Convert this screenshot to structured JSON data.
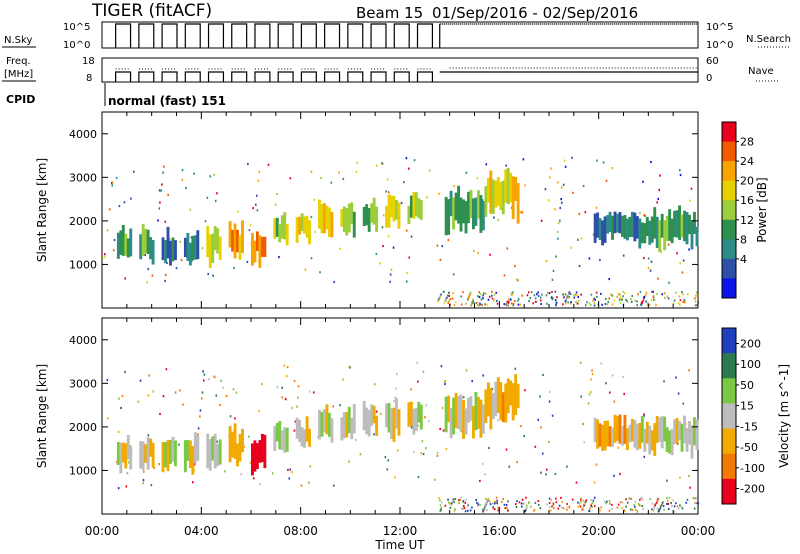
{
  "header": {
    "title": "TIGER (fitACF)",
    "beam": "Beam 15",
    "date_range": "01/Sep/2016 - 02/Sep/2016"
  },
  "status_panel": {
    "nsky_label": "N.Sky",
    "nsky_ticks": [
      "10^5",
      "10^0"
    ],
    "nsearch_label": "N.Search",
    "freq_label_1": "Freq.",
    "freq_label_2": "[MHz]",
    "freq_ticks": [
      "18",
      "8"
    ],
    "nave_ticks": [
      "60",
      "0"
    ],
    "nave_label": "Nave",
    "cpid_label": "CPID",
    "cpid_text": "normal (fast) 151"
  },
  "colorbars": {
    "power": {
      "label": "Power [dB]",
      "ticks": [
        "28",
        "24",
        "20",
        "16",
        "12",
        "8",
        "4"
      ],
      "colors": [
        "#e8001e",
        "#f25a00",
        "#f7a300",
        "#e6d200",
        "#9ccd3a",
        "#2e8f4e",
        "#2c8c86",
        "#2e4fa8",
        "#0a14e6"
      ]
    },
    "velocity": {
      "label": "Velocity [m s^-1]",
      "ticks": [
        "200",
        "100",
        "50",
        "15",
        "-15",
        "-50",
        "-100",
        "-200"
      ],
      "colors": [
        "#1f3fbf",
        "#2c7a50",
        "#7ac943",
        "#bdbdbd",
        "#f2a900",
        "#f27a00",
        "#e8001e"
      ]
    }
  },
  "chart_data": [
    {
      "type": "heatmap",
      "name": "Power",
      "ylabel": "Slant Range [km]",
      "xlabel": "",
      "ylim": [
        0,
        4500
      ],
      "yticks": [
        "4000",
        "3000",
        "2000",
        "1000"
      ],
      "xlim": [
        0,
        24
      ],
      "xticks": [
        "00:00",
        "04:00",
        "08:00",
        "12:00",
        "16:00",
        "20:00",
        "00:00"
      ],
      "blocks": [
        {
          "t0": 0.6,
          "t1": 1.2,
          "r0": 1050,
          "r1": 1800,
          "level": 3
        },
        {
          "t0": 1.5,
          "t1": 2.1,
          "r0": 1050,
          "r1": 1800,
          "level": 3
        },
        {
          "t0": 2.4,
          "t1": 3.0,
          "r0": 1000,
          "r1": 1750,
          "level": 2
        },
        {
          "t0": 3.3,
          "t1": 3.9,
          "r0": 1000,
          "r1": 1750,
          "level": 2
        },
        {
          "t0": 4.2,
          "t1": 4.8,
          "r0": 1050,
          "r1": 1850,
          "level": 4
        },
        {
          "t0": 5.1,
          "t1": 5.7,
          "r0": 1100,
          "r1": 1950,
          "level": 6
        },
        {
          "t0": 6.0,
          "t1": 6.6,
          "r0": 1000,
          "r1": 1800,
          "level": 7
        },
        {
          "t0": 6.9,
          "t1": 7.5,
          "r0": 1400,
          "r1": 2100,
          "level": 4
        },
        {
          "t0": 7.8,
          "t1": 8.4,
          "r0": 1500,
          "r1": 2200,
          "level": 5
        },
        {
          "t0": 8.7,
          "t1": 9.3,
          "r0": 1700,
          "r1": 2400,
          "level": 5
        },
        {
          "t0": 9.6,
          "t1": 10.2,
          "r0": 1700,
          "r1": 2400,
          "level": 4
        },
        {
          "t0": 10.5,
          "t1": 11.1,
          "r0": 1800,
          "r1": 2500,
          "level": 4
        },
        {
          "t0": 11.4,
          "t1": 12.0,
          "r0": 1800,
          "r1": 2600,
          "level": 5
        },
        {
          "t0": 12.3,
          "t1": 12.9,
          "r0": 1900,
          "r1": 2600,
          "level": 4
        },
        {
          "t0": 13.8,
          "t1": 15.4,
          "r0": 1800,
          "r1": 2700,
          "level": 3
        },
        {
          "t0": 15.4,
          "t1": 16.8,
          "r0": 2100,
          "r1": 3100,
          "level": 5
        },
        {
          "t0": 19.8,
          "t1": 21.6,
          "r0": 1500,
          "r1": 2200,
          "level": 2
        },
        {
          "t0": 21.6,
          "t1": 24.0,
          "r0": 1400,
          "r1": 2200,
          "level": 3
        }
      ]
    },
    {
      "type": "heatmap",
      "name": "Velocity",
      "ylabel": "Slant Range [km]",
      "xlabel": "Time UT",
      "ylim": [
        0,
        4500
      ],
      "yticks": [
        "4000",
        "3000",
        "2000",
        "1000"
      ],
      "xlim": [
        0,
        24
      ],
      "xticks": [
        "00:00",
        "04:00",
        "08:00",
        "12:00",
        "16:00",
        "20:00",
        "00:00"
      ],
      "blocks": [
        {
          "t0": 0.6,
          "t1": 1.2,
          "r0": 1050,
          "r1": 1800,
          "level": 3
        },
        {
          "t0": 1.5,
          "t1": 2.1,
          "r0": 1050,
          "r1": 1800,
          "level": 3
        },
        {
          "t0": 2.4,
          "t1": 3.0,
          "r0": 1000,
          "r1": 1750,
          "level": 3
        },
        {
          "t0": 3.3,
          "t1": 3.9,
          "r0": 1000,
          "r1": 1750,
          "level": 3
        },
        {
          "t0": 4.2,
          "t1": 4.8,
          "r0": 1050,
          "r1": 1850,
          "level": 3
        },
        {
          "t0": 5.1,
          "t1": 5.7,
          "r0": 1100,
          "r1": 1950,
          "level": 2
        },
        {
          "t0": 6.0,
          "t1": 6.6,
          "r0": 1000,
          "r1": 1800,
          "level": 0
        },
        {
          "t0": 6.9,
          "t1": 7.5,
          "r0": 1400,
          "r1": 2100,
          "level": 3
        },
        {
          "t0": 7.8,
          "t1": 8.4,
          "r0": 1500,
          "r1": 2200,
          "level": 3
        },
        {
          "t0": 8.7,
          "t1": 9.3,
          "r0": 1700,
          "r1": 2400,
          "level": 3
        },
        {
          "t0": 9.6,
          "t1": 10.2,
          "r0": 1700,
          "r1": 2400,
          "level": 3
        },
        {
          "t0": 10.5,
          "t1": 11.1,
          "r0": 1800,
          "r1": 2500,
          "level": 3
        },
        {
          "t0": 11.4,
          "t1": 12.0,
          "r0": 1800,
          "r1": 2600,
          "level": 3
        },
        {
          "t0": 12.3,
          "t1": 12.9,
          "r0": 1900,
          "r1": 2600,
          "level": 3
        },
        {
          "t0": 13.8,
          "t1": 15.4,
          "r0": 1800,
          "r1": 2700,
          "level": 3
        },
        {
          "t0": 15.4,
          "t1": 16.8,
          "r0": 2100,
          "r1": 3100,
          "level": 2
        },
        {
          "t0": 19.8,
          "t1": 21.6,
          "r0": 1500,
          "r1": 2200,
          "level": 2
        },
        {
          "t0": 21.6,
          "t1": 24.0,
          "r0": 1400,
          "r1": 2200,
          "level": 3
        }
      ]
    }
  ]
}
